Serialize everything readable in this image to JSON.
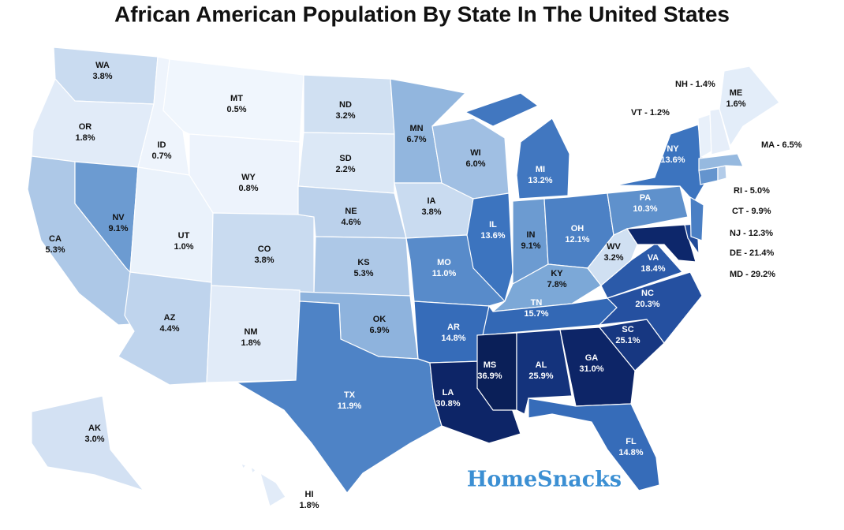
{
  "title": "African American Population By State In The United States",
  "brand": "HomeSnacks",
  "chart_data": {
    "type": "choropleth",
    "regions": [
      {
        "name": "WA",
        "value": 3.8,
        "value_label": "3.8%"
      },
      {
        "name": "OR",
        "value": 1.8,
        "value_label": "1.8%"
      },
      {
        "name": "CA",
        "value": 5.3,
        "value_label": "5.3%"
      },
      {
        "name": "NV",
        "value": 9.1,
        "value_label": "9.1%"
      },
      {
        "name": "ID",
        "value": 0.7,
        "value_label": "0.7%"
      },
      {
        "name": "MT",
        "value": 0.5,
        "value_label": "0.5%"
      },
      {
        "name": "WY",
        "value": 0.8,
        "value_label": "0.8%"
      },
      {
        "name": "UT",
        "value": 1.0,
        "value_label": "1.0%"
      },
      {
        "name": "CO",
        "value": 3.8,
        "value_label": "3.8%"
      },
      {
        "name": "AZ",
        "value": 4.4,
        "value_label": "4.4%"
      },
      {
        "name": "NM",
        "value": 1.8,
        "value_label": "1.8%"
      },
      {
        "name": "ND",
        "value": 3.2,
        "value_label": "3.2%"
      },
      {
        "name": "SD",
        "value": 2.2,
        "value_label": "2.2%"
      },
      {
        "name": "NE",
        "value": 4.6,
        "value_label": "4.6%"
      },
      {
        "name": "KS",
        "value": 5.3,
        "value_label": "5.3%"
      },
      {
        "name": "OK",
        "value": 6.9,
        "value_label": "6.9%"
      },
      {
        "name": "TX",
        "value": 11.9,
        "value_label": "11.9%"
      },
      {
        "name": "MN",
        "value": 6.7,
        "value_label": "6.7%"
      },
      {
        "name": "IA",
        "value": 3.8,
        "value_label": "3.8%"
      },
      {
        "name": "MO",
        "value": 11.0,
        "value_label": "11.0%"
      },
      {
        "name": "AR",
        "value": 14.8,
        "value_label": "14.8%"
      },
      {
        "name": "LA",
        "value": 30.8,
        "value_label": "30.8%"
      },
      {
        "name": "WI",
        "value": 6.0,
        "value_label": "6.0%"
      },
      {
        "name": "IL",
        "value": 13.6,
        "value_label": "13.6%"
      },
      {
        "name": "MI",
        "value": 13.2,
        "value_label": "13.2%"
      },
      {
        "name": "IN",
        "value": 9.1,
        "value_label": "9.1%"
      },
      {
        "name": "OH",
        "value": 12.1,
        "value_label": "12.1%"
      },
      {
        "name": "KY",
        "value": 7.8,
        "value_label": "7.8%"
      },
      {
        "name": "TN",
        "value": 15.7,
        "value_label": "15.7%"
      },
      {
        "name": "MS",
        "value": 36.9,
        "value_label": "36.9%"
      },
      {
        "name": "AL",
        "value": 25.9,
        "value_label": "25.9%"
      },
      {
        "name": "GA",
        "value": 31.0,
        "value_label": "31.0%"
      },
      {
        "name": "FL",
        "value": 14.8,
        "value_label": "14.8%"
      },
      {
        "name": "SC",
        "value": 25.1,
        "value_label": "25.1%"
      },
      {
        "name": "NC",
        "value": 20.3,
        "value_label": "20.3%"
      },
      {
        "name": "VA",
        "value": 18.4,
        "value_label": "18.4%"
      },
      {
        "name": "WV",
        "value": 3.2,
        "value_label": "3.2%"
      },
      {
        "name": "PA",
        "value": 10.3,
        "value_label": "10.3%"
      },
      {
        "name": "NY",
        "value": 13.6,
        "value_label": "13.6%"
      },
      {
        "label": "MD - 29.2%",
        "value": 29.2
      },
      {
        "label": "DE - 21.4%",
        "value": 21.4
      },
      {
        "label": "NJ - 12.3%",
        "value": 12.3
      },
      {
        "label": "CT - 9.9%",
        "value": 9.9
      },
      {
        "label": "RI - 5.0%",
        "value": 5.0
      },
      {
        "label": "MA - 6.5%",
        "value": 6.5
      },
      {
        "label": "VT - 1.2%",
        "value": 1.2
      },
      {
        "label": "NH - 1.4%",
        "value": 1.4
      },
      {
        "name": "ME",
        "value": 1.6,
        "value_label": "1.6%"
      },
      {
        "name": "AK",
        "value": 3.0,
        "value_label": "3.0%"
      },
      {
        "name": "HI",
        "value": 1.8,
        "value_label": "1.8%"
      }
    ]
  }
}
